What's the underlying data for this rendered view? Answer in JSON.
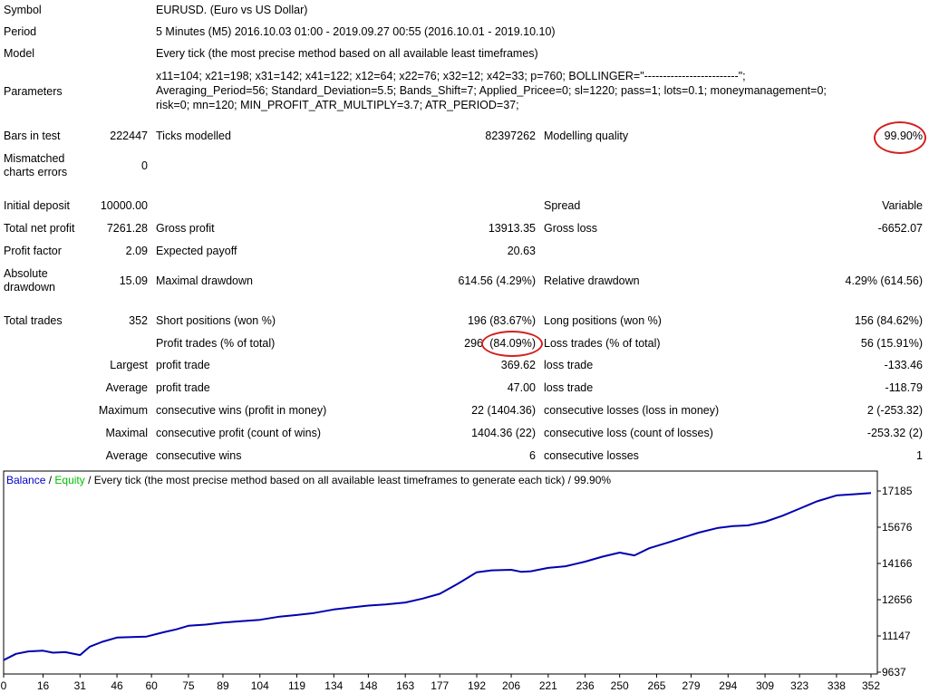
{
  "summary": {
    "symbol_label": "Symbol",
    "symbol_value": "EURUSD. (Euro vs US Dollar)",
    "period_label": "Period",
    "period_value": "5 Minutes (M5) 2016.10.03 01:00 - 2019.09.27 00:55 (2016.10.01 - 2019.10.10)",
    "model_label": "Model",
    "model_value": "Every tick (the most precise method based on all available least timeframes)",
    "parameters_label": "Parameters",
    "parameters_line1": "x11=104; x21=198; x31=142; x41=122; x12=64; x22=76; x32=12; x42=33; p=760; BOLLINGER=\"-------------------------\";",
    "parameters_line2": "Averaging_Period=56; Standard_Deviation=5.5; Bands_Shift=7; Applied_Pricee=0; sl=1220; pass=1; lots=0.1; moneymanagement=0;",
    "parameters_line3": "risk=0; mn=120; MIN_PROFIT_ATR_MULTIPLY=3.7; ATR_PERIOD=37;",
    "bars_label": "Bars in test",
    "bars_value": "222447",
    "ticks_label": "Ticks modelled",
    "ticks_value": "82397262",
    "quality_label": "Modelling quality",
    "quality_value": "99.90%",
    "mismatch_label": "Mismatched charts errors",
    "mismatch_value": "0"
  },
  "results": {
    "initial_deposit_label": "Initial deposit",
    "initial_deposit_value": "10000.00",
    "spread_label": "Spread",
    "spread_value": "Variable",
    "net_profit_label": "Total net profit",
    "net_profit_value": "7261.28",
    "gross_profit_label": "Gross profit",
    "gross_profit_value": "13913.35",
    "gross_loss_label": "Gross loss",
    "gross_loss_value": "-6652.07",
    "profit_factor_label": "Profit factor",
    "profit_factor_value": "2.09",
    "expected_payoff_label": "Expected payoff",
    "expected_payoff_value": "20.63",
    "abs_drawdown_label": "Absolute drawdown",
    "abs_drawdown_value": "15.09",
    "max_drawdown_label": "Maximal drawdown",
    "max_drawdown_value": "614.56 (4.29%)",
    "rel_drawdown_label": "Relative drawdown",
    "rel_drawdown_value": "4.29% (614.56)",
    "total_trades_label": "Total trades",
    "total_trades_value": "352",
    "short_label": "Short positions (won %)",
    "short_value": "196 (83.67%)",
    "long_label": "Long positions (won %)",
    "long_value": "156 (84.62%)",
    "profit_trades_label": "Profit trades (% of total)",
    "profit_trades_count": "296",
    "profit_trades_pct": "(84.09%)",
    "loss_trades_label": "Loss trades (% of total)",
    "loss_trades_value": "56 (15.91%)",
    "largest_label": "Largest",
    "largest_profit_label": "profit trade",
    "largest_profit_value": "369.62",
    "largest_loss_label": "loss trade",
    "largest_loss_value": "-133.46",
    "average_label": "Average",
    "average_profit_label": "profit trade",
    "average_profit_value": "47.00",
    "average_loss_label": "loss trade",
    "average_loss_value": "-118.79",
    "maximum_label": "Maximum",
    "max_consec_wins_label": "consecutive wins (profit in money)",
    "max_consec_wins_value": "22 (1404.36)",
    "max_consec_losses_label": "consecutive losses (loss in money)",
    "max_consec_losses_value": "2 (-253.32)",
    "maximal_label": "Maximal",
    "maximal_profit_label": "consecutive profit (count of wins)",
    "maximal_profit_value": "1404.36 (22)",
    "maximal_loss_label": "consecutive loss (count of losses)",
    "maximal_loss_value": "-253.32 (2)",
    "avg_consec_label": "Average",
    "avg_consec_wins_label": "consecutive wins",
    "avg_consec_wins_value": "6",
    "avg_consec_losses_label": "consecutive losses",
    "avg_consec_losses_value": "1"
  },
  "chart_legend": {
    "balance": "Balance",
    "sep1": " / ",
    "equity": "Equity",
    "sep2": " / ",
    "description": "Every tick (the most precise method based on all available least timeframes to generate each tick) / 99.90%"
  },
  "colors": {
    "balance": "#0000b0",
    "equity": "#00c000",
    "highlight": "#d42020",
    "legend_balance": "#0000c8"
  },
  "chart_data": {
    "type": "line",
    "title": "",
    "xlabel": "",
    "ylabel": "",
    "x_ticks": [
      "0",
      "16",
      "31",
      "46",
      "60",
      "75",
      "89",
      "104",
      "119",
      "134",
      "148",
      "163",
      "177",
      "192",
      "206",
      "221",
      "236",
      "250",
      "265",
      "279",
      "294",
      "309",
      "323",
      "338",
      "352"
    ],
    "y_ticks": [
      9637,
      11147,
      12656,
      14166,
      15676,
      17185
    ],
    "xlim": [
      0,
      352
    ],
    "ylim": [
      9637,
      17185
    ],
    "grid": false,
    "series": [
      {
        "name": "Balance",
        "x": [
          0,
          5,
          10,
          16,
          20,
          25,
          31,
          35,
          40,
          46,
          52,
          58,
          65,
          70,
          75,
          82,
          89,
          95,
          104,
          112,
          119,
          126,
          134,
          140,
          148,
          155,
          163,
          170,
          177,
          184,
          192,
          198,
          206,
          210,
          214,
          221,
          228,
          236,
          243,
          250,
          256,
          262,
          270,
          276,
          282,
          290,
          296,
          302,
          309,
          316,
          323,
          330,
          338,
          345,
          352
        ],
        "y": [
          10140,
          10400,
          10500,
          10530,
          10450,
          10470,
          10350,
          10700,
          10900,
          11080,
          11100,
          11120,
          11300,
          11420,
          11570,
          11620,
          11700,
          11750,
          11820,
          11950,
          12020,
          12100,
          12250,
          12320,
          12410,
          12460,
          12540,
          12700,
          12900,
          13300,
          13800,
          13880,
          13900,
          13820,
          13840,
          13980,
          14050,
          14240,
          14450,
          14620,
          14500,
          14800,
          15050,
          15250,
          15450,
          15650,
          15720,
          15750,
          15900,
          16150,
          16450,
          16750,
          17000,
          17050,
          17100
        ]
      }
    ]
  }
}
